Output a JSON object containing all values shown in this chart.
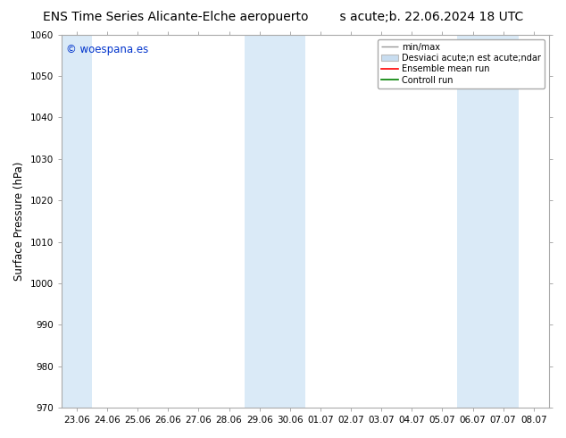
{
  "title_left": "ENS Time Series Alicante-Elche aeropuerto",
  "title_right": "s acute;b. 22.06.2024 18 UTC",
  "ylabel": "Surface Pressure (hPa)",
  "ylim": [
    970,
    1060
  ],
  "yticks": [
    970,
    980,
    990,
    1000,
    1010,
    1020,
    1030,
    1040,
    1050,
    1060
  ],
  "xtick_labels": [
    "23.06",
    "24.06",
    "25.06",
    "26.06",
    "27.06",
    "28.06",
    "29.06",
    "30.06",
    "01.07",
    "02.07",
    "03.07",
    "04.07",
    "05.07",
    "06.07",
    "07.07",
    "08.07"
  ],
  "shade_color": "#daeaf7",
  "bg_color": "#ffffff",
  "watermark": "© woespana.es",
  "watermark_color": "#0033cc",
  "legend_items": [
    {
      "label": "min/max",
      "color": "#aaaaaa",
      "style": "errorbar"
    },
    {
      "label": "Desviaci acute;n est acute;ndar",
      "color": "#c8ddf0",
      "style": "box"
    },
    {
      "label": "Ensemble mean run",
      "color": "#ff0000",
      "style": "line"
    },
    {
      "label": "Controll run",
      "color": "#008000",
      "style": "line"
    }
  ],
  "spine_color": "#aaaaaa",
  "title_fontsize": 10,
  "tick_fontsize": 7.5,
  "ylabel_fontsize": 8.5,
  "watermark_fontsize": 8.5
}
